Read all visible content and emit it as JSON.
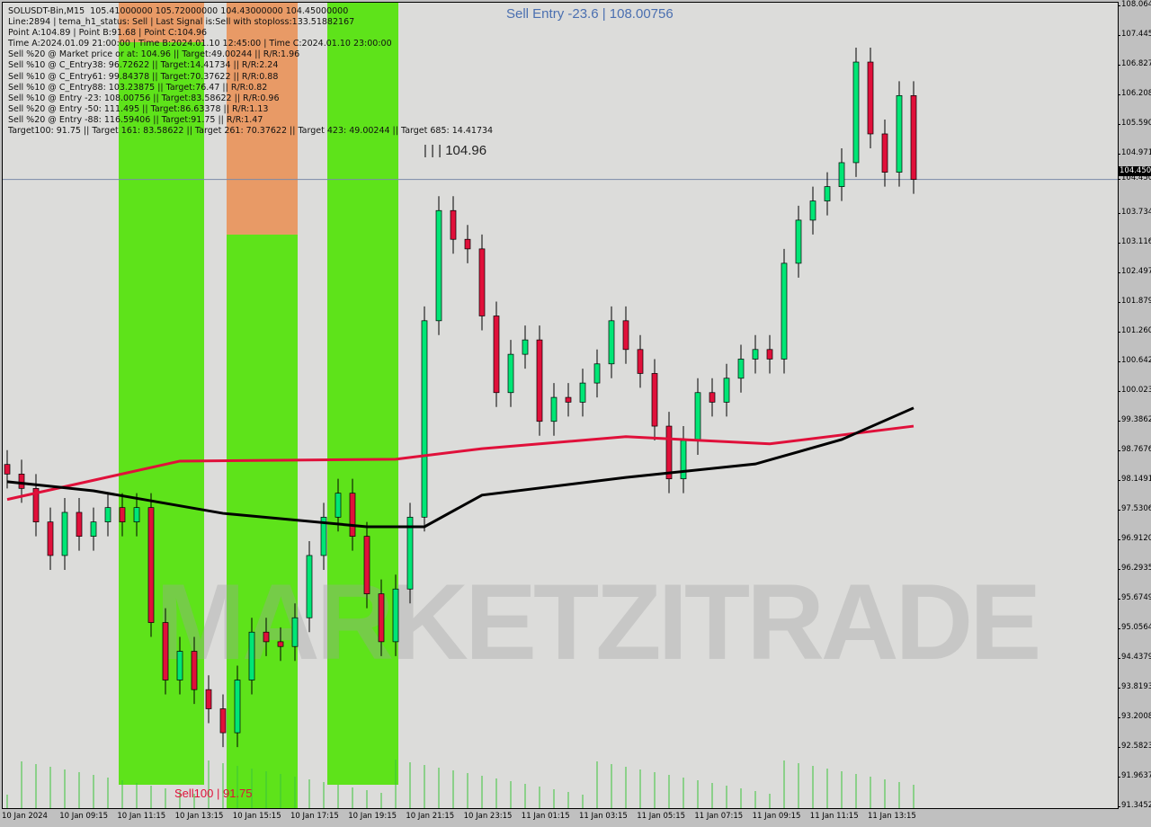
{
  "info_lines": [
    "SOLUSDT-Bin,M15  105.41000000 105.72000000 104.43000000 104.45000000",
    "Line:2894 | tema_h1_status: Sell | Last Signal is:Sell with stoploss:133.51882167",
    "Point A:104.89 | Point B:91.68 | Point C:104.96",
    "Time A:2024.01.09 21:00:00 | Time B:2024.01.10 12:45:00 | Time C:2024.01.10 23:00:00",
    "Sell %20 @ Market price or at: 104.96 || Target:49.00244 || R/R:1.96",
    "Sell %10 @ C_Entry38: 96.72622 || Target:14.41734 || R/R:2.24",
    "Sell %10 @ C_Entry61: 99.84378 || Target:70.37622 || R/R:0.88",
    "Sell %10 @ C_Entry88: 103.23875 || Target:76.47 || R/R:0.82",
    "Sell %10 @ Entry -23: 108.00756 || Target:83.58622 || R/R:0.96",
    "Sell %20 @ Entry -50: 111.495 || Target:86.63378 || R/R:1.13",
    "Sell %20 @ Entry -88: 116.59406 || Target:91.75 || R/R:1.47",
    "Target100: 91.75 || Target 161: 83.58622 || Target 261: 70.37622 || Target 423: 49.00244 || Target 685: 14.41734"
  ],
  "annotations": {
    "sell_entry": "Sell Entry -23.6 | 108.00756",
    "point_c": "| | | 104.96",
    "sell100": "Sell100 | 91.75"
  },
  "watermark": "MARKETZITRADE",
  "current_price": "104.450",
  "colors": {
    "bull": "#00e676",
    "bear": "#e0103a",
    "band_green": "#5ee31a",
    "band_orange": "#e89a66",
    "ma_red": "#e0103a",
    "ma_black": "#000000",
    "price_line": "#7a8aa8"
  },
  "chart_data": {
    "type": "candlestick",
    "symbol": "SOLUSDT-Bin",
    "timeframe": "M15",
    "ylim": [
      91.3452,
      108.064
    ],
    "y_ticks": [
      "108.064",
      "107.445",
      "106.827",
      "106.208",
      "105.590",
      "104.971",
      "104.450",
      "103.734",
      "103.116",
      "102.497",
      "101.879",
      "101.260",
      "100.642",
      "100.023",
      "99.3862",
      "98.7676",
      "98.1491",
      "97.5306",
      "96.9120",
      "96.2935",
      "95.6749",
      "95.0564",
      "94.4379",
      "93.8193",
      "93.2008",
      "92.5823",
      "91.9637",
      "91.3452"
    ],
    "x_ticks": [
      "10 Jan 2024",
      "10 Jan 09:15",
      "10 Jan 11:15",
      "10 Jan 13:15",
      "10 Jan 15:15",
      "10 Jan 17:15",
      "10 Jan 19:15",
      "10 Jan 21:15",
      "10 Jan 23:15",
      "11 Jan 01:15",
      "11 Jan 03:15",
      "11 Jan 05:15",
      "11 Jan 07:15",
      "11 Jan 09:15",
      "11 Jan 11:15",
      "11 Jan 13:15"
    ],
    "closes": [
      98.3,
      98.0,
      97.3,
      96.6,
      97.5,
      97.0,
      97.3,
      97.6,
      97.3,
      97.6,
      95.2,
      94.0,
      94.6,
      93.8,
      93.4,
      92.9,
      94.0,
      95.0,
      94.8,
      94.7,
      95.3,
      96.6,
      97.4,
      97.9,
      97.0,
      95.8,
      94.8,
      95.9,
      97.4,
      101.5,
      103.8,
      103.2,
      103.0,
      101.6,
      100.0,
      100.8,
      101.1,
      99.4,
      99.9,
      99.8,
      100.2,
      100.6,
      101.5,
      100.9,
      100.4,
      99.3,
      98.2,
      99.0,
      100.0,
      99.8,
      100.3,
      100.7,
      100.9,
      100.7,
      102.7,
      103.6,
      104.0,
      104.3,
      104.8,
      106.9,
      105.4,
      104.6,
      106.2,
      104.45
    ],
    "ma_red": [
      [
        0,
        97.77
      ],
      [
        12,
        98.57
      ],
      [
        27,
        98.61
      ],
      [
        33,
        98.83
      ],
      [
        43,
        99.08
      ],
      [
        53,
        98.93
      ],
      [
        63,
        99.3
      ]
    ],
    "ma_black": [
      [
        0,
        98.14
      ],
      [
        6,
        97.95
      ],
      [
        15,
        97.48
      ],
      [
        25,
        97.2
      ],
      [
        29,
        97.2
      ],
      [
        33,
        97.86
      ],
      [
        43,
        98.23
      ],
      [
        52,
        98.51
      ],
      [
        58,
        99.02
      ],
      [
        63,
        99.68
      ]
    ]
  }
}
